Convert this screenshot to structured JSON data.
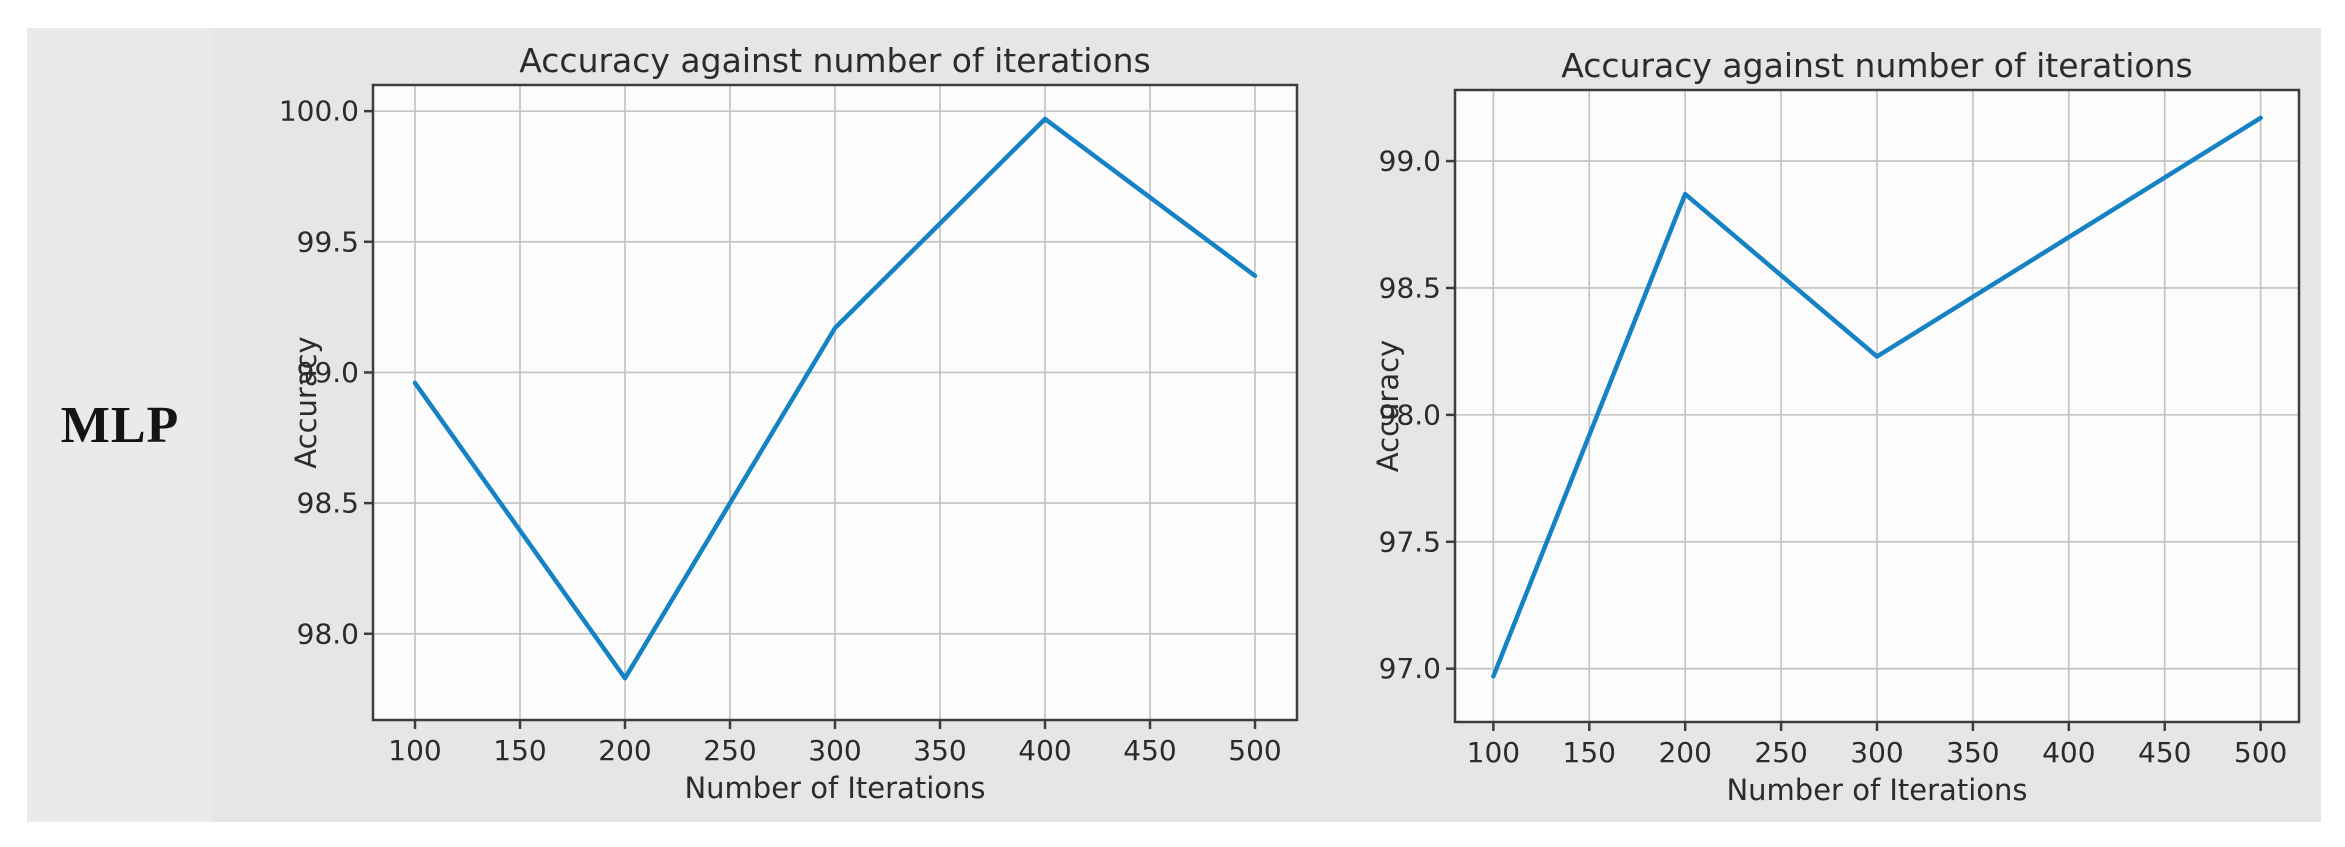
{
  "row_label": "MLP",
  "style": {
    "page_bg": "#ffffff",
    "panel_bg": "#e7e6e7",
    "label_cell_bg": "#ebeaeb",
    "plot_bg": "#fcfcfc",
    "grid_color": "#c2c1c2",
    "spine_color": "#3d3d3d",
    "text_color": "#2b2b2b",
    "line_color": "#1482c3"
  },
  "chart_data": [
    {
      "type": "line",
      "title": "Accuracy against number of iterations",
      "xlabel": "Number of Iterations",
      "ylabel": "Accuracy",
      "x": [
        100,
        200,
        300,
        400,
        500
      ],
      "y": [
        98.96,
        97.83,
        99.17,
        99.97,
        99.37
      ],
      "xticks": [
        100,
        150,
        200,
        250,
        300,
        350,
        400,
        450,
        500
      ],
      "ytick_labels": [
        "98.0",
        "98.5",
        "99.0",
        "99.5",
        "100.0"
      ],
      "xlim": [
        80,
        520
      ],
      "ylim": [
        97.67,
        100.1
      ],
      "grid": true,
      "legend_position": "none"
    },
    {
      "type": "line",
      "title": "Accuracy against number of iterations",
      "xlabel": "Number of Iterations",
      "ylabel": "Accuracy",
      "x": [
        100,
        200,
        300,
        400,
        500
      ],
      "y": [
        96.97,
        98.87,
        98.23,
        98.7,
        99.17
      ],
      "xticks": [
        100,
        150,
        200,
        250,
        300,
        350,
        400,
        450,
        500
      ],
      "ytick_labels": [
        "97.0",
        "97.5",
        "98.0",
        "98.5",
        "99.0"
      ],
      "xlim": [
        80,
        520
      ],
      "ylim": [
        96.79,
        99.28
      ],
      "grid": true,
      "legend_position": "none"
    }
  ]
}
